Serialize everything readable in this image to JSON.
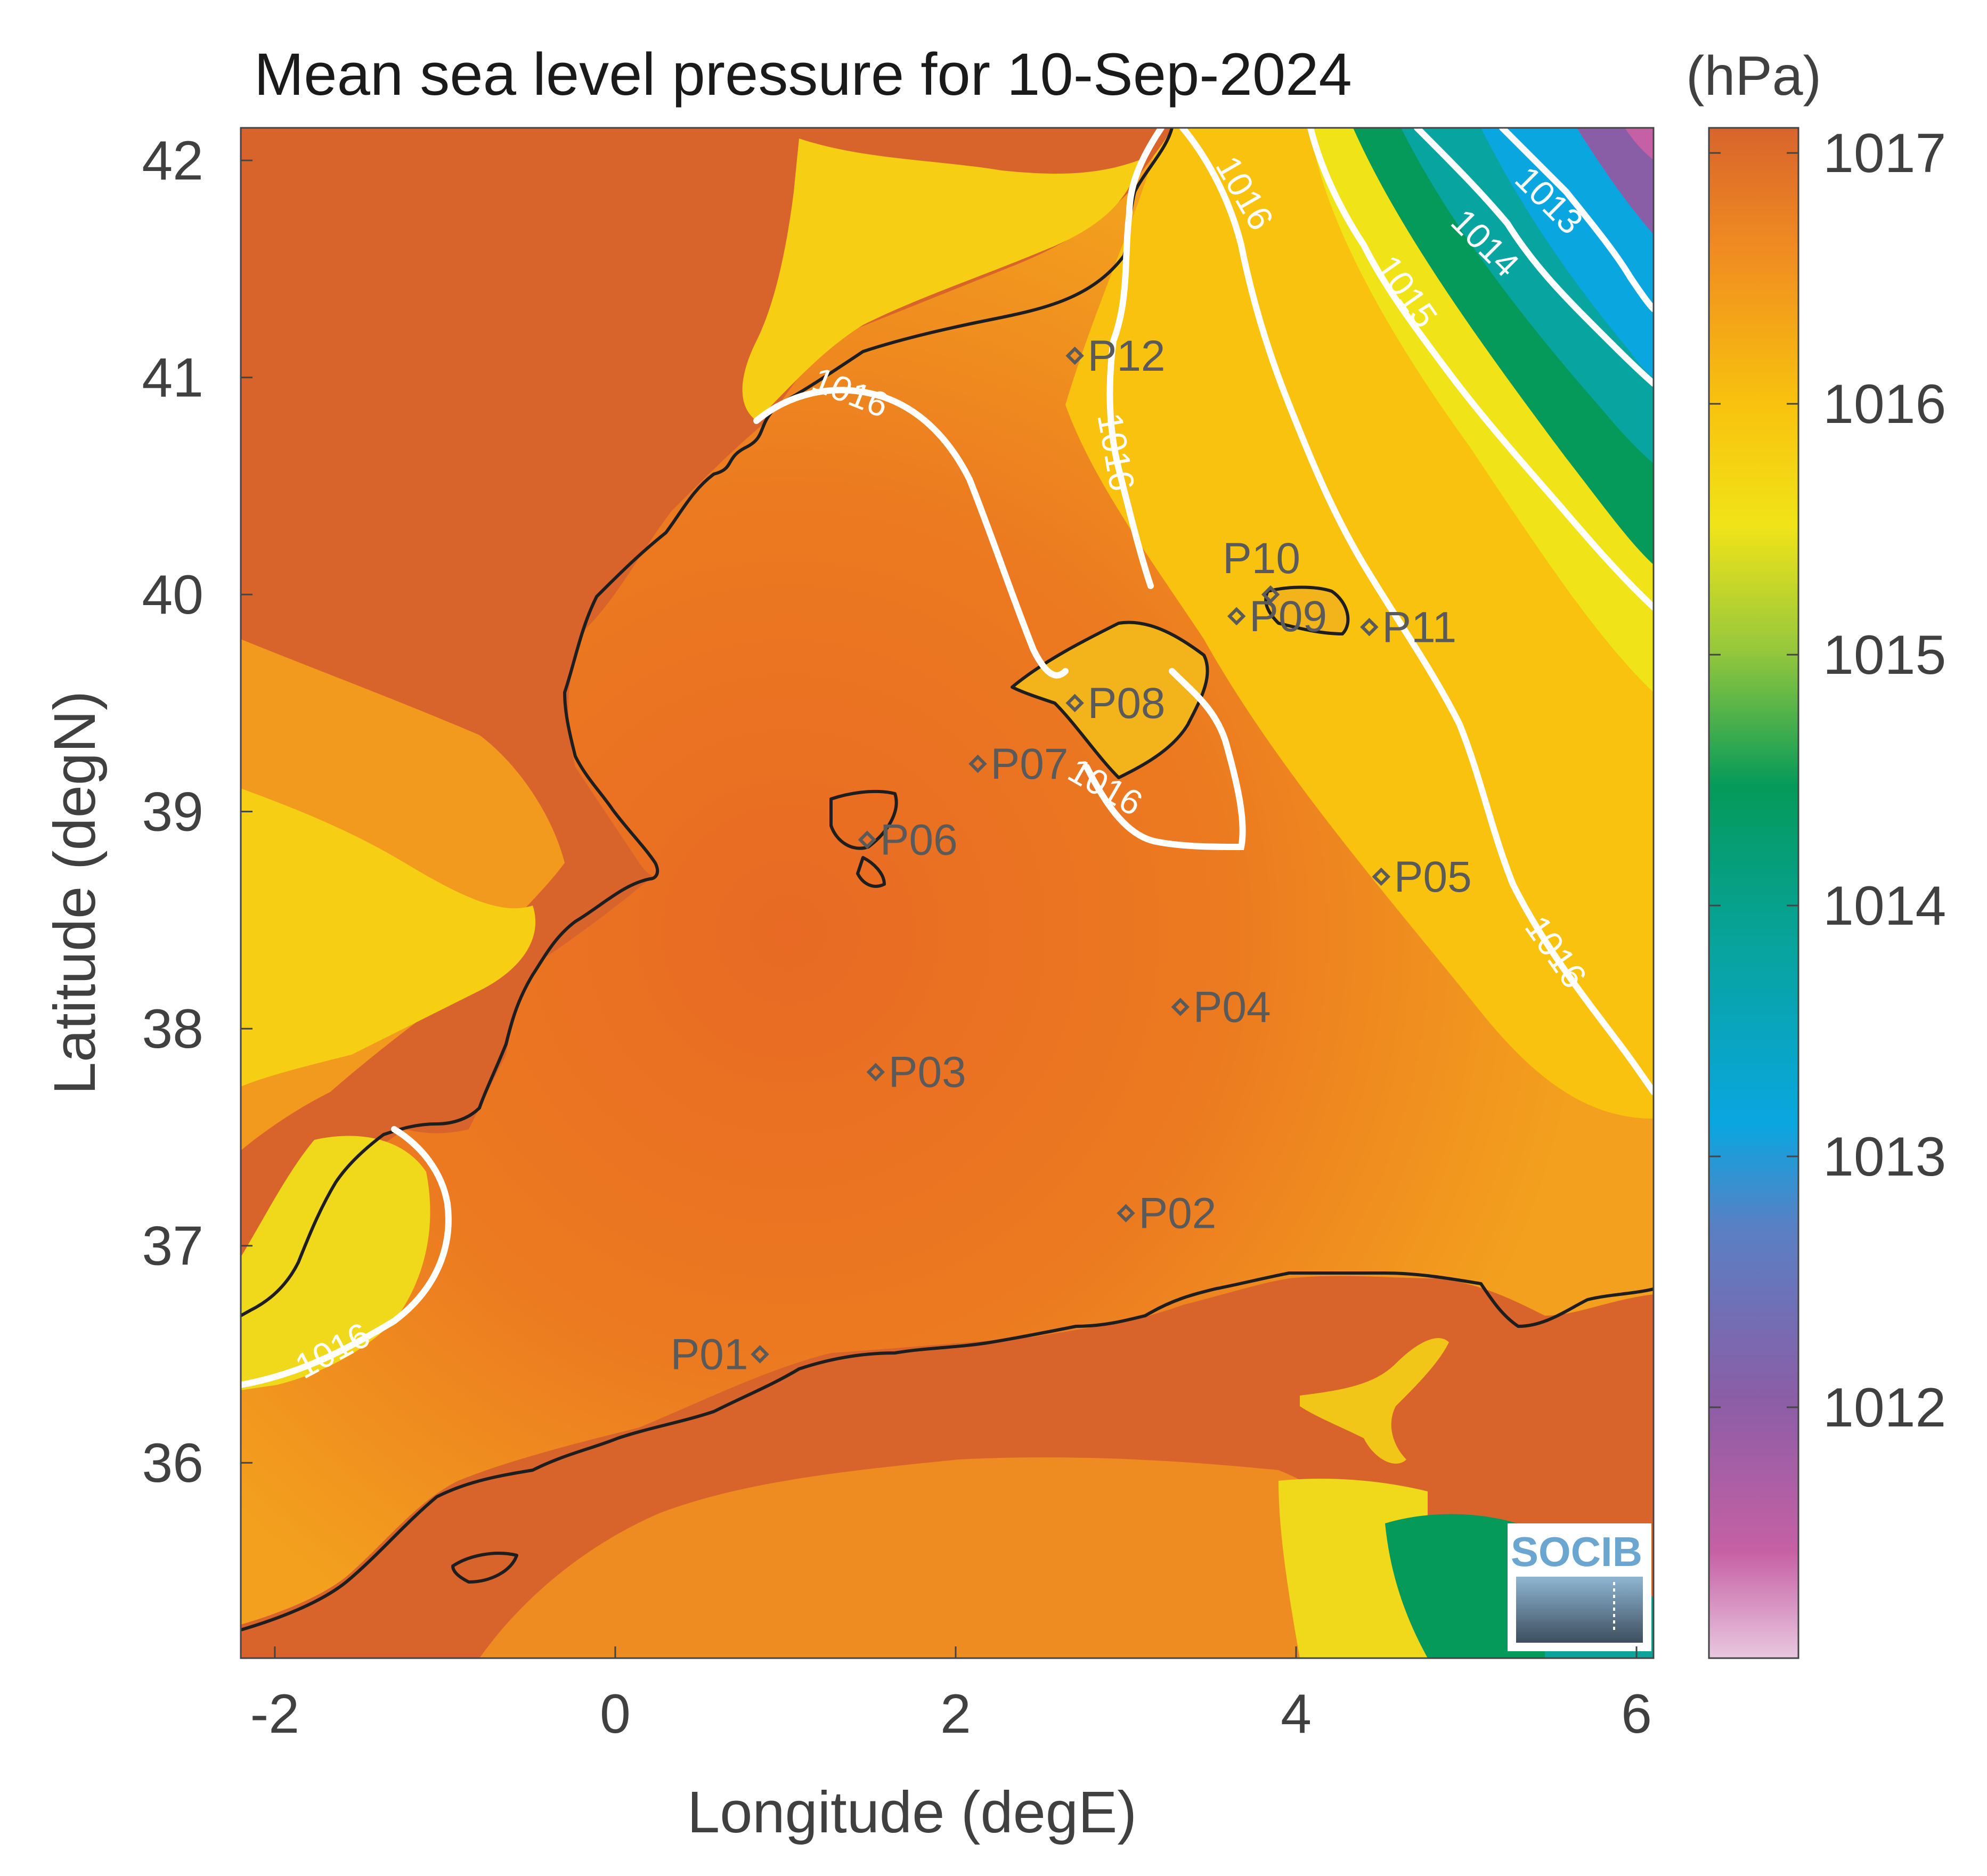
{
  "title": "Mean sea level pressure for 10-Sep-2024",
  "colorbar": {
    "unit_label": "(hPa)",
    "min": 1011.0,
    "max": 1017.1,
    "ticks": [
      1012,
      1013,
      1014,
      1015,
      1016,
      1017
    ],
    "tick_labels": [
      "1012",
      "1013",
      "1014",
      "1015",
      "1016",
      "1017"
    ],
    "colors": [
      "#e8c8df",
      "#c660a4",
      "#8a5ea6",
      "#5b7fc3",
      "#0aa6e0",
      "#08a4a0",
      "#059a5a",
      "#98c83c",
      "#f0e418",
      "#f8c20e",
      "#f08c22",
      "#d8642c"
    ]
  },
  "chart_data": {
    "type": "map",
    "xlabel": "Longitude (degE)",
    "ylabel": "Latitude (degN)",
    "xlim": [
      -2.2,
      6.1
    ],
    "ylim": [
      35.1,
      42.15
    ],
    "x_ticks": [
      -2,
      0,
      2,
      4,
      6
    ],
    "x_tick_labels": [
      "-2",
      "0",
      "2",
      "4",
      "6"
    ],
    "y_ticks": [
      36,
      37,
      38,
      39,
      40,
      41,
      42
    ],
    "y_tick_labels": [
      "36",
      "37",
      "38",
      "39",
      "40",
      "41",
      "42"
    ],
    "stations": [
      {
        "name": "P01",
        "lon": 0.85,
        "lat": 36.5
      },
      {
        "name": "P02",
        "lon": 3.0,
        "lat": 37.15
      },
      {
        "name": "P03",
        "lon": 1.53,
        "lat": 37.8
      },
      {
        "name": "P04",
        "lon": 3.32,
        "lat": 38.1
      },
      {
        "name": "P05",
        "lon": 4.5,
        "lat": 38.7
      },
      {
        "name": "P06",
        "lon": 1.48,
        "lat": 38.87
      },
      {
        "name": "P07",
        "lon": 2.13,
        "lat": 39.22
      },
      {
        "name": "P08",
        "lon": 2.7,
        "lat": 39.5
      },
      {
        "name": "P09",
        "lon": 3.65,
        "lat": 39.9
      },
      {
        "name": "P10",
        "lon": 3.85,
        "lat": 40.0
      },
      {
        "name": "P11",
        "lon": 4.43,
        "lat": 39.85
      },
      {
        "name": "P12",
        "lon": 2.7,
        "lat": 41.1
      }
    ],
    "contour_labels": [
      "1013",
      "1014",
      "1015",
      "1016"
    ]
  },
  "logo": {
    "text": "SOCIB"
  }
}
